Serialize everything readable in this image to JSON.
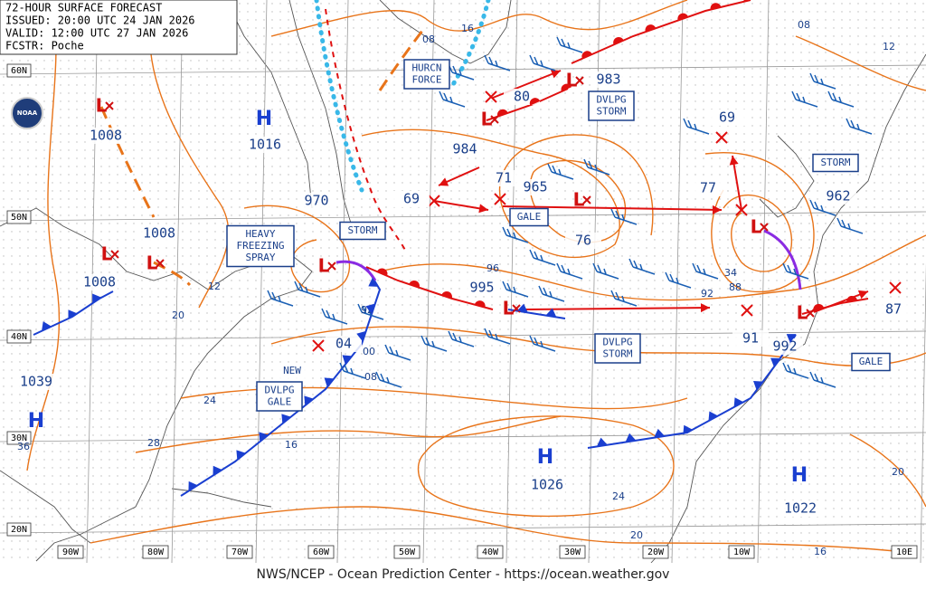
{
  "header": {
    "title": "72-HOUR SURFACE FORECAST",
    "issued": "ISSUED: 20:00 UTC 24 JAN 2026",
    "valid": "VALID: 12:00 UTC 27 JAN 2026",
    "forecaster": "FCSTR: Poche"
  },
  "logo": "NOAA",
  "latitude_labels": [
    "60N",
    "50N",
    "40N",
    "30N",
    "20N"
  ],
  "longitude_labels": [
    "90W",
    "80W",
    "70W",
    "60W",
    "50W",
    "40W",
    "30W",
    "20W",
    "10W",
    "10E"
  ],
  "centers": [
    {
      "letter": "H"
    },
    {
      "letter": "H"
    },
    {
      "letter": "H"
    },
    {
      "letter": "H"
    },
    {
      "letter": "L"
    },
    {
      "letter": "L"
    },
    {
      "letter": "L"
    },
    {
      "letter": "L"
    },
    {
      "letter": "L"
    },
    {
      "letter": "L"
    },
    {
      "letter": "L"
    },
    {
      "letter": "L"
    },
    {
      "letter": "L"
    },
    {
      "letter": "L"
    }
  ],
  "pressures": [
    "1008",
    "1016",
    "1008",
    "1008",
    "1039",
    "1026",
    "1022",
    "970",
    "69",
    "984",
    "71",
    "965",
    "76",
    "983",
    "80",
    "69",
    "77",
    "962",
    "995",
    "04",
    "91",
    "992",
    "87",
    "NEW"
  ],
  "isobar_labels": [
    "08",
    "16",
    "08",
    "12",
    "12",
    "20",
    "24",
    "28",
    "36",
    "92",
    "00",
    "08",
    "16",
    "96",
    "92",
    "88",
    "34",
    "24",
    "20",
    "16",
    "20"
  ],
  "warnings": [
    {
      "lines": [
        "HURCN",
        "FORCE"
      ]
    },
    {
      "lines": [
        "DVLPG",
        "STORM"
      ]
    },
    {
      "lines": [
        "STORM"
      ]
    },
    {
      "lines": [
        "GALE"
      ]
    },
    {
      "lines": [
        "HEAVY",
        "FREEZING",
        "SPRAY"
      ]
    },
    {
      "lines": [
        "STORM"
      ]
    },
    {
      "lines": [
        "DVLPG",
        "STORM"
      ]
    },
    {
      "lines": [
        "DVLPG",
        "GALE"
      ]
    },
    {
      "lines": [
        "GALE"
      ]
    }
  ],
  "footer": "NWS/NCEP - Ocean Prediction Center - https://ocean.weather.gov"
}
